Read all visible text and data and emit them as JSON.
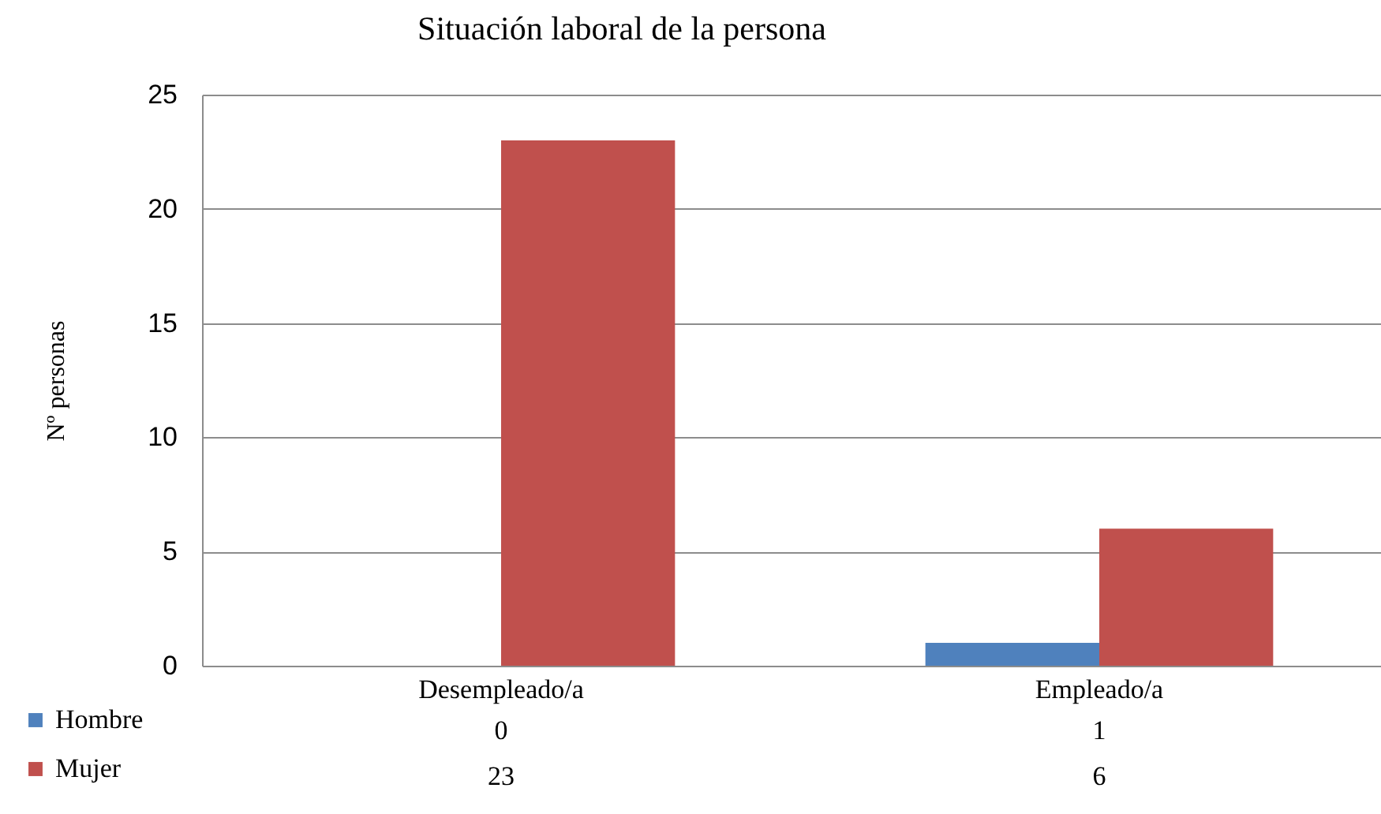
{
  "chart_data": {
    "type": "bar",
    "title": "Situación laboral de la persona",
    "ylabel": "Nº personas",
    "categories": [
      "Desempleado/a",
      "Empleado/a"
    ],
    "series": [
      {
        "name": "Hombre",
        "color": "#4f81bd",
        "values": [
          0,
          1
        ]
      },
      {
        "name": "Mujer",
        "color": "#c0504d",
        "values": [
          23,
          6
        ]
      }
    ],
    "ylim": [
      0,
      25
    ],
    "yticks": [
      0,
      5,
      10,
      15,
      20,
      25
    ],
    "grid": "y",
    "legend": "bottom",
    "data_labels": true
  }
}
